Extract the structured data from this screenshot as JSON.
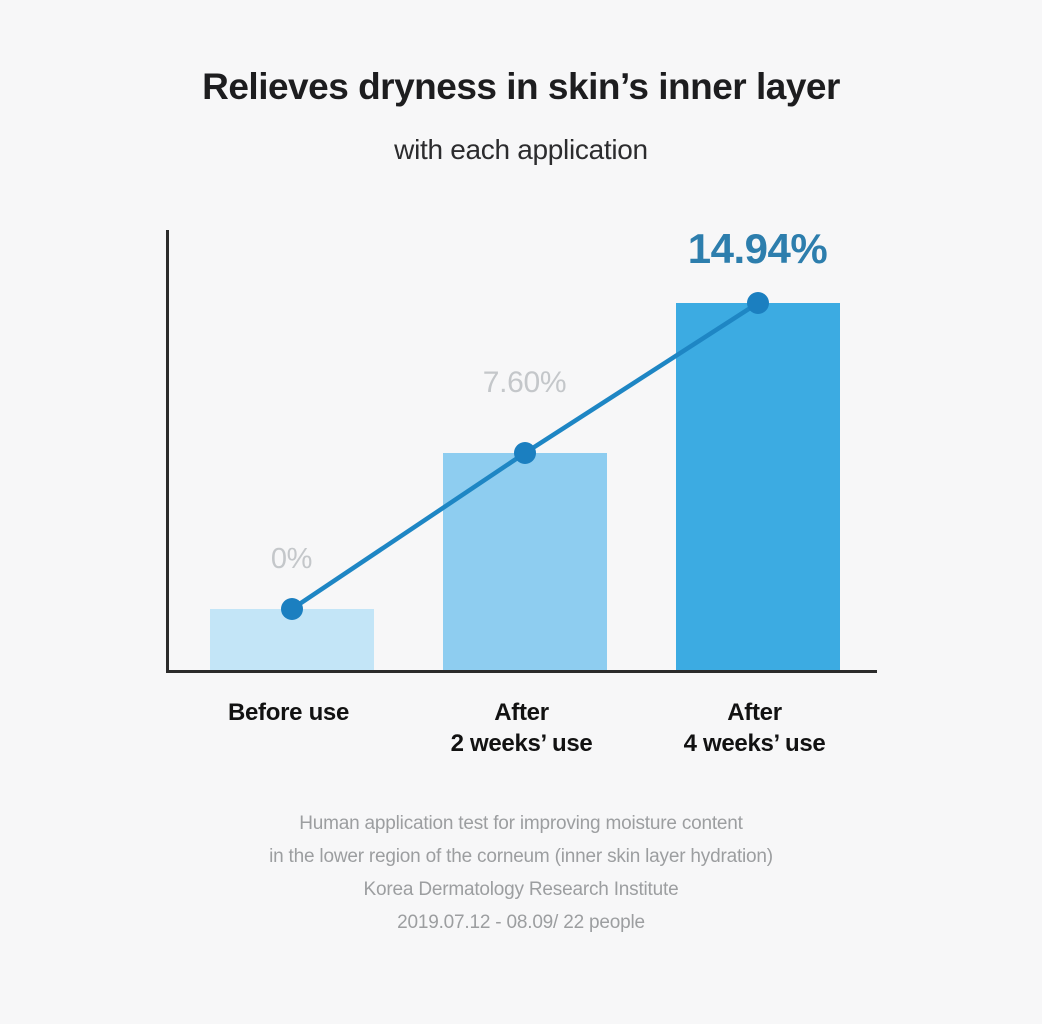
{
  "page": {
    "background": "#f7f7f8"
  },
  "header": {
    "title": "Relieves dryness in skin’s inner layer",
    "subtitle": "with each application"
  },
  "chart_data": {
    "type": "bar",
    "categories": [
      [
        "Before use"
      ],
      [
        "After",
        "2 weeks’ use"
      ],
      [
        "After",
        "4 weeks’ use"
      ]
    ],
    "values": [
      0,
      7.6,
      14.94
    ],
    "value_labels": [
      "0%",
      "7.60%",
      "14.94%"
    ],
    "title": "Relieves dryness in skin’s inner layer",
    "subtitle": "with each application",
    "xlabel": "",
    "ylabel": "",
    "ylim": [
      0,
      16
    ],
    "grid": false,
    "legend": "none",
    "overlay_line_series": "same values connected by dots on bar tops",
    "bar_colors": [
      "#c3e5f7",
      "#8ecdf0",
      "#3cabe2"
    ],
    "line_color": "#1e86c4",
    "dot_color": "#1b7fc0",
    "value_label_colors": [
      "#c4c7ca",
      "#c4c7ca",
      "#2d7ead"
    ],
    "axis_color": "#2b2b2b"
  },
  "footnote": {
    "lines": [
      "Human application test for improving moisture content",
      "in the lower region of the corneum (inner skin layer hydration)",
      "Korea Dermatology Research Institute",
      "2019.07.12 - 08.09/ 22 people"
    ]
  }
}
